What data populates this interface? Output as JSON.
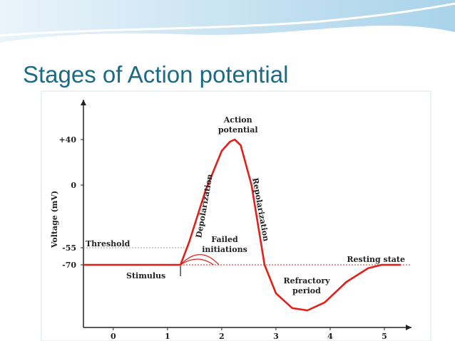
{
  "title": "Stages of Action potential",
  "chart_data": {
    "type": "line",
    "ylabel": "Voltage (mV)",
    "x": [
      -0.55,
      1.24,
      1.4,
      1.7,
      2.0,
      2.15,
      2.24,
      2.35,
      2.55,
      2.79,
      3.0,
      3.3,
      3.58,
      3.9,
      4.3,
      4.7,
      4.95,
      5.3
    ],
    "series": [
      {
        "color": "#e0201b",
        "values": [
          -70,
          -70,
          -50,
          -5,
          30,
          38,
          40,
          35,
          0,
          -70,
          -95,
          -108,
          -110,
          -103,
          -85,
          -73,
          -70,
          -70
        ]
      }
    ],
    "hlines": [
      -55,
      -70
    ],
    "xlim": [
      -0.55,
      5.5
    ],
    "ylim": [
      -125,
      75
    ],
    "xticks": [
      0,
      1,
      2,
      3,
      4,
      5
    ],
    "yticks": [
      {
        "value": 40,
        "label": "+40"
      },
      0,
      -55,
      -70
    ],
    "annotations": [
      "Action",
      "potential",
      "Depolarization",
      "Repolarization",
      "Threshold",
      "Failed",
      "initiations",
      "Stimulus",
      "Resting state",
      "Refractory",
      "period"
    ]
  }
}
